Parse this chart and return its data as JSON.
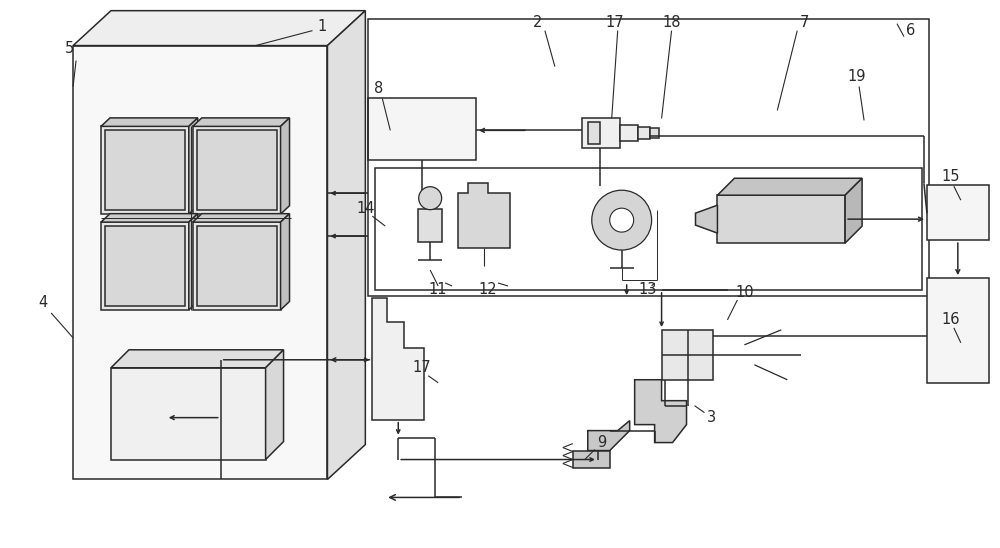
{
  "bg_color": "#ffffff",
  "line_color": "#2a2a2a",
  "fig_width": 10.0,
  "fig_height": 5.48,
  "dpi": 100
}
